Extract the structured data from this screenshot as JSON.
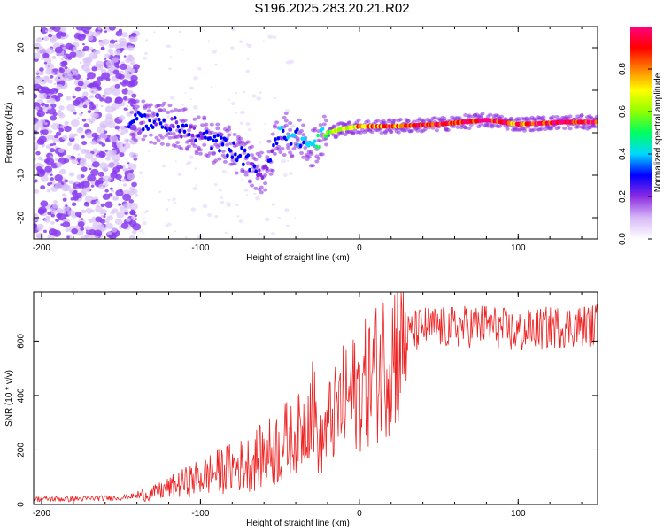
{
  "figure_title": "S196.2025.283.20.21.R02",
  "colors": {
    "snr_line": "#ee2222",
    "axis": "#000000",
    "scatter": "#7a1fe0",
    "background": "#ffffff"
  },
  "chart_data": [
    {
      "type": "heatmap",
      "title": "",
      "xlabel": "Height of straight line (km)",
      "ylabel": "Frequency (Hz)",
      "xlim": [
        -205,
        150
      ],
      "ylim": [
        -25,
        25
      ],
      "xticks": [
        -200,
        -100,
        0,
        100
      ],
      "yticks": [
        -20,
        -10,
        0,
        10,
        20
      ],
      "colorbar": {
        "label": "Normalized spectral amplitude",
        "range": [
          0,
          1
        ],
        "ticks": [
          "0.0",
          "0.2",
          "0.4",
          "0.6",
          "0.8"
        ],
        "colormap": [
          "#ffffff",
          "#d8b8f8",
          "#8a2be2",
          "#0000ff",
          "#00d8ff",
          "#00ff60",
          "#90ff00",
          "#ffff00",
          "#ff8000",
          "#ff0000",
          "#ff0080"
        ]
      },
      "trace": [
        {
          "x": -145,
          "y": 3,
          "amp": 0.3
        },
        {
          "x": -130,
          "y": 2.5,
          "amp": 0.3
        },
        {
          "x": -115,
          "y": 1.5,
          "amp": 0.25
        },
        {
          "x": -100,
          "y": -1,
          "amp": 0.25
        },
        {
          "x": -85,
          "y": -3,
          "amp": 0.3
        },
        {
          "x": -75,
          "y": -5,
          "amp": 0.3
        },
        {
          "x": -60,
          "y": -10,
          "amp": 0.2
        },
        {
          "x": -50,
          "y": 0,
          "amp": 0.35
        },
        {
          "x": -40,
          "y": -1,
          "amp": 0.35
        },
        {
          "x": -30,
          "y": -3,
          "amp": 0.4
        },
        {
          "x": -20,
          "y": 0,
          "amp": 0.55
        },
        {
          "x": -10,
          "y": 1,
          "amp": 0.65
        },
        {
          "x": 0,
          "y": 1.5,
          "amp": 0.75
        },
        {
          "x": 20,
          "y": 1.5,
          "amp": 0.85
        },
        {
          "x": 50,
          "y": 2,
          "amp": 0.9
        },
        {
          "x": 80,
          "y": 3,
          "amp": 0.95
        },
        {
          "x": 100,
          "y": 2,
          "amp": 0.85
        },
        {
          "x": 130,
          "y": 2.5,
          "amp": 0.95
        },
        {
          "x": 150,
          "y": 2.5,
          "amp": 0.95
        }
      ]
    },
    {
      "type": "line",
      "title": "",
      "xlabel": "Height of straight line (km)",
      "ylabel": "SNR (10 * v/v)",
      "xlim": [
        -205,
        150
      ],
      "ylim": [
        0,
        780
      ],
      "xticks": [
        -200,
        -100,
        0,
        100
      ],
      "yticks": [
        0,
        200,
        400,
        600
      ],
      "series": [
        {
          "name": "SNR",
          "x": [
            -205,
            -180,
            -150,
            -130,
            -110,
            -90,
            -70,
            -60,
            -45,
            -35,
            -30,
            -25,
            -20,
            -15,
            -10,
            0,
            10,
            20,
            30,
            40,
            60,
            80,
            100,
            120,
            150
          ],
          "y": [
            20,
            20,
            25,
            40,
            80,
            120,
            150,
            180,
            230,
            280,
            400,
            200,
            300,
            330,
            380,
            420,
            480,
            560,
            620,
            650,
            650,
            660,
            630,
            650,
            660
          ]
        }
      ]
    }
  ]
}
